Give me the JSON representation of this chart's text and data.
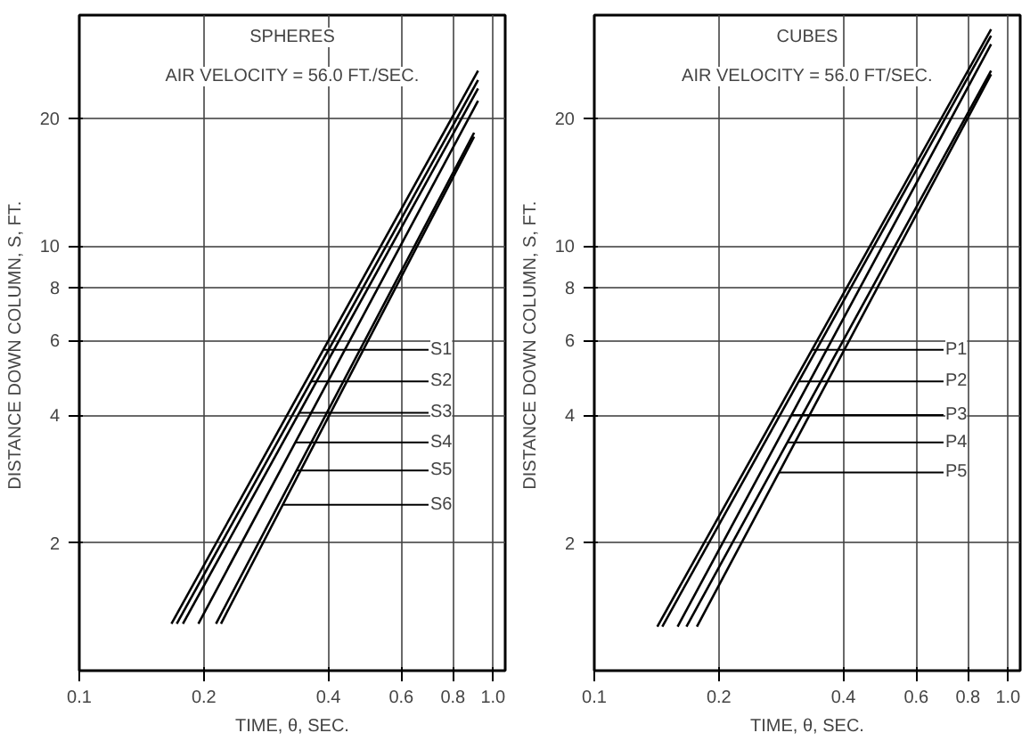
{
  "chart_data": [
    {
      "type": "line",
      "title": "SPHERES",
      "subtitle": "AIR VELOCITY = 56.0 FT./SEC.",
      "xlabel": "TIME, θ, SEC.",
      "ylabel": "DISTANCE  DOWN COLUMN, S, FT.",
      "log": "xy",
      "grid": true,
      "marker": "none",
      "line_style": "solid",
      "xlim": [
        0.1,
        1.07
      ],
      "ylim": [
        1,
        35
      ],
      "xticks": [
        {
          "value": 0.1,
          "label": "0.1"
        },
        {
          "value": 0.2,
          "label": "0.2"
        },
        {
          "value": 0.4,
          "label": "0.4"
        },
        {
          "value": 0.6,
          "label": "0.6"
        },
        {
          "value": 0.8,
          "label": "0.8"
        },
        {
          "value": 1.0,
          "label": "1.0"
        }
      ],
      "yticks": [
        2,
        4,
        6,
        8,
        10,
        20
      ],
      "series": [
        {
          "color": "#000000",
          "x": [
            0.167,
            0.92
          ],
          "values": [
            1.29,
            25.9
          ]
        },
        {
          "color": "#000000",
          "x": [
            0.172,
            0.92
          ],
          "values": [
            1.29,
            24.6
          ]
        },
        {
          "color": "#000000",
          "x": [
            0.178,
            0.92
          ],
          "values": [
            1.29,
            23.5
          ]
        },
        {
          "color": "#000000",
          "x": [
            0.194,
            0.92
          ],
          "values": [
            1.29,
            22.0
          ]
        },
        {
          "color": "#000000",
          "x": [
            0.214,
            0.9
          ],
          "values": [
            1.29,
            18.5
          ]
        },
        {
          "color": "#000000",
          "x": [
            0.22,
            0.9
          ],
          "values": [
            1.29,
            18.1
          ]
        }
      ],
      "annotations": [
        {
          "text": "S1",
          "x": 0.389,
          "y": 5.7
        },
        {
          "text": "S2",
          "x": 0.363,
          "y": 4.8
        },
        {
          "text": "S3",
          "x": 0.34,
          "y": 4.05
        },
        {
          "text": "S4",
          "x": 0.333,
          "y": 3.45
        },
        {
          "text": "S5",
          "x": 0.334,
          "y": 2.96
        },
        {
          "text": "S6",
          "x": 0.31,
          "y": 2.46
        }
      ]
    },
    {
      "type": "line",
      "title": "CUBES",
      "subtitle": "AIR VELOCITY = 56.0 FT/SEC.",
      "xlabel": "TIME, θ, SEC.",
      "ylabel": "DISTANCE  DOWN COLUMN, S, FT.",
      "log": "xy",
      "grid": true,
      "marker": "none",
      "line_style": "solid",
      "xlim": [
        0.1,
        1.07
      ],
      "ylim": [
        1,
        35
      ],
      "xticks": [
        {
          "value": 0.1,
          "label": "0.1"
        },
        {
          "value": 0.2,
          "label": "0.2"
        },
        {
          "value": 0.4,
          "label": "0.4"
        },
        {
          "value": 0.6,
          "label": "0.6"
        },
        {
          "value": 0.8,
          "label": "0.8"
        },
        {
          "value": 1.0,
          "label": "1.0"
        }
      ],
      "yticks": [
        2,
        4,
        6,
        8,
        10,
        20
      ],
      "series": [
        {
          "color": "#000000",
          "x": [
            0.142,
            0.91
          ],
          "values": [
            1.27,
            32.4
          ]
        },
        {
          "color": "#000000",
          "x": [
            0.146,
            0.91
          ],
          "values": [
            1.27,
            31.3
          ]
        },
        {
          "color": "#000000",
          "x": [
            0.159,
            0.91
          ],
          "values": [
            1.27,
            29.9
          ]
        },
        {
          "color": "#000000",
          "x": [
            0.167,
            0.91
          ],
          "values": [
            1.27,
            25.9
          ]
        },
        {
          "color": "#000000",
          "x": [
            0.177,
            0.91
          ],
          "values": [
            1.27,
            25.4
          ]
        }
      ],
      "annotations": [
        {
          "text": "P1",
          "x": 0.336,
          "y": 5.7
        },
        {
          "text": "P2",
          "x": 0.312,
          "y": 4.8
        },
        {
          "text": "P3",
          "x": 0.299,
          "y": 4.0
        },
        {
          "text": "P4",
          "x": 0.293,
          "y": 3.45
        },
        {
          "text": "P5",
          "x": 0.279,
          "y": 2.93
        }
      ]
    }
  ]
}
